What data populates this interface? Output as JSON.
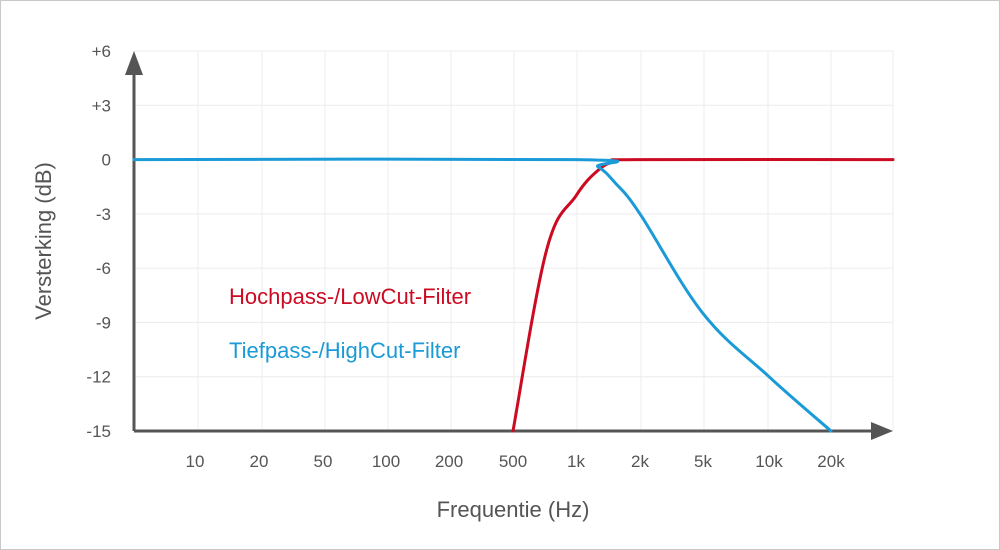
{
  "chart_data": {
    "type": "line",
    "xlabel": "Frequentie (Hz)",
    "ylabel": "Versterking (dB)",
    "x_tick_labels": [
      "10",
      "20",
      "50",
      "100",
      "200",
      "500",
      "1k",
      "2k",
      "5k",
      "10k",
      "20k"
    ],
    "y_tick_labels": [
      "+6",
      "+3",
      "0",
      "-3",
      "-6",
      "-9",
      "-12",
      "-15"
    ],
    "y_tick_values": [
      6,
      3,
      0,
      -3,
      -6,
      -9,
      -12,
      -15
    ],
    "ylim": [
      -15,
      6
    ],
    "grid": true,
    "series": [
      {
        "name": "Hochpass-/LowCut-Filter",
        "color": "#cc0a22",
        "x": [
          "500",
          "700",
          "1k",
          "1.3k",
          "1.6k",
          "2k",
          "20k"
        ],
        "y": [
          -15,
          -5,
          -2,
          -0.6,
          -0.1,
          0,
          0
        ]
      },
      {
        "name": "Tiefpass-/HighCut-Filter",
        "color": "#1a9ad7",
        "x": [
          "10",
          "1k",
          "1.3k",
          "1.6k",
          "2k",
          "5k",
          "10k",
          "20k"
        ],
        "y": [
          0,
          0,
          -0.4,
          -1.3,
          -3,
          -8.5,
          -12,
          -15
        ]
      }
    ]
  }
}
